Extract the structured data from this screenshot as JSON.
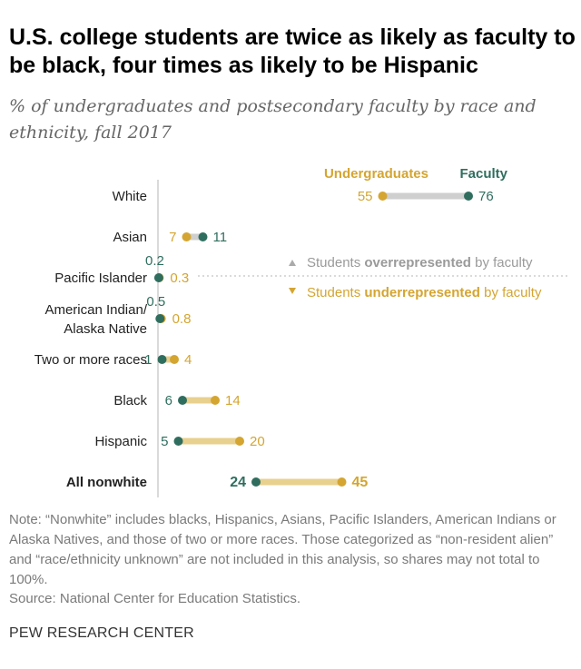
{
  "title": "U.S. college students are twice as likely as faculty to be black, four times as likely to be Hispanic",
  "subtitle": "% of undergraduates and postsecondary faculty by race and ethnicity, fall 2017",
  "colors": {
    "undergraduates": "#d4a531",
    "faculty": "#2f6e5e",
    "faculty_higher_bar": "#cfcfcf",
    "undergrad_higher_bar": "#e8d08e",
    "label_text": "#333333",
    "legend_text": "#9a9a9a"
  },
  "chart_data": {
    "type": "dot-plot",
    "legend": {
      "undergraduates": "Undergraduates",
      "faculty": "Faculty"
    },
    "annotation": {
      "over_prefix": "Students ",
      "over_bold": "overrepresented",
      "over_suffix": " by faculty",
      "under_prefix": "Students ",
      "under_bold": "underrepresented",
      "under_suffix": " by faculty"
    },
    "categories": [
      {
        "label": [
          "White"
        ],
        "undergraduates": 55,
        "faculty": 76,
        "bold": false
      },
      {
        "label": [
          "Asian"
        ],
        "undergraduates": 7,
        "faculty": 11,
        "bold": false
      },
      {
        "label": [
          "Pacific Islander"
        ],
        "undergraduates": 0.3,
        "faculty": 0.2,
        "bold": false
      },
      {
        "label": [
          "American Indian/",
          "Alaska Native"
        ],
        "undergraduates": 0.8,
        "faculty": 0.5,
        "bold": false
      },
      {
        "label": [
          "Two or more races"
        ],
        "undergraduates": 4,
        "faculty": 1,
        "bold": false
      },
      {
        "label": [
          "Black"
        ],
        "undergraduates": 14,
        "faculty": 6,
        "bold": false
      },
      {
        "label": [
          "Hispanic"
        ],
        "undergraduates": 20,
        "faculty": 5,
        "bold": false
      },
      {
        "label": [
          "All nonwhite"
        ],
        "undergraduates": 45,
        "faculty": 24,
        "bold": true
      }
    ]
  },
  "note": "Note: “Nonwhite” includes blacks, Hispanics, Asians, Pacific Islanders, American Indians or Alaska Natives, and those of two or more races. Those categorized as “non-resident alien” and “race/ethnicity unknown” are not included in this analysis, so shares may not total to 100%.",
  "source": "Source: National Center for Education Statistics.",
  "brand": "PEW RESEARCH CENTER"
}
